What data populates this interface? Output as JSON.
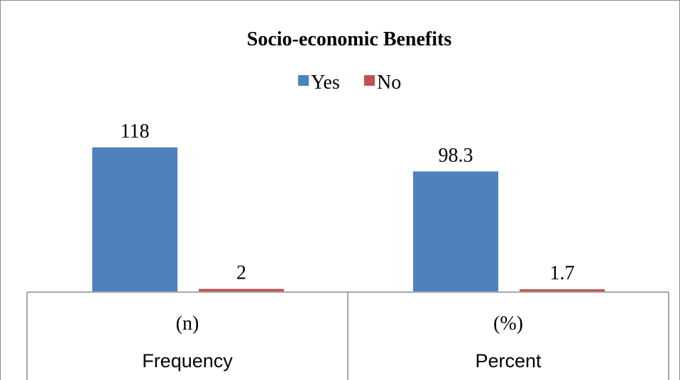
{
  "chart_data": {
    "type": "bar",
    "title": "Socio-economic Benefits",
    "categories": [
      "(n)",
      "(%)"
    ],
    "groups": [
      "Frequency",
      "Percent"
    ],
    "series": [
      {
        "name": "Yes",
        "values": [
          118,
          98.3
        ],
        "labels": [
          "118",
          "98.3"
        ],
        "color": "#4f81bd"
      },
      {
        "name": "No",
        "values": [
          2,
          1.7
        ],
        "labels": [
          "2",
          "1.7"
        ],
        "color": "#c0504d"
      }
    ],
    "ylim": [
      0,
      140
    ],
    "grid": false,
    "legend": "top-center"
  }
}
